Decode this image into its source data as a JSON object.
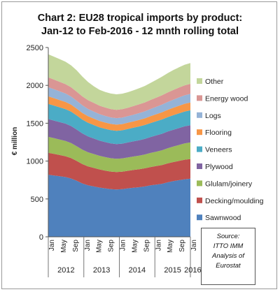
{
  "chart_data": {
    "type": "area",
    "stacked": true,
    "title": "Chart 2: EU28 tropical imports by product:",
    "subtitle": "Jan-12 to Feb-2016 - 12 mnth rolling total",
    "ylabel": "€ million",
    "ylim": [
      0,
      2500
    ],
    "yticks": [
      0,
      500,
      1000,
      1500,
      2000,
      2500
    ],
    "x_tick_labels": [
      "Jan",
      "May",
      "Sep",
      "Jan",
      "May",
      "Sep",
      "Jan",
      "May",
      "Sep",
      "Jan",
      "May",
      "Sep",
      "Jan"
    ],
    "year_labels": [
      "2012",
      "2013",
      "2014",
      "2015",
      "2016"
    ],
    "x": [
      "Jan-12",
      "Mar-12",
      "May-12",
      "Jul-12",
      "Sep-12",
      "Nov-12",
      "Jan-13",
      "Mar-13",
      "May-13",
      "Jul-13",
      "Sep-13",
      "Nov-13",
      "Jan-14",
      "Mar-14",
      "May-14",
      "Jul-14",
      "Sep-14",
      "Nov-14",
      "Jan-15",
      "Mar-15",
      "May-15",
      "Jul-15",
      "Sep-15",
      "Nov-15",
      "Jan-16",
      "Feb-16"
    ],
    "grid": false,
    "legend_position": "right",
    "series": [
      {
        "name": "Sawnwood",
        "color": "#4f81bd",
        "values": [
          820,
          810,
          800,
          790,
          770,
          740,
          705,
          680,
          665,
          650,
          640,
          630,
          625,
          630,
          640,
          648,
          655,
          665,
          680,
          690,
          700,
          720,
          735,
          748,
          760,
          768
        ]
      },
      {
        "name": "Decking/moulding",
        "color": "#c0504d",
        "values": [
          290,
          285,
          280,
          275,
          270,
          262,
          255,
          250,
          245,
          240,
          235,
          232,
          230,
          230,
          232,
          235,
          238,
          240,
          242,
          245,
          248,
          250,
          252,
          255,
          258,
          260
        ]
      },
      {
        "name": "Glulam/joinery",
        "color": "#9bbb59",
        "values": [
          210,
          208,
          205,
          202,
          198,
          194,
          190,
          186,
          183,
          180,
          178,
          176,
          175,
          175,
          176,
          178,
          180,
          183,
          186,
          190,
          195,
          200,
          205,
          210,
          215,
          218
        ]
      },
      {
        "name": "Plywood",
        "color": "#8064a2",
        "values": [
          235,
          232,
          230,
          228,
          225,
          220,
          215,
          210,
          205,
          200,
          198,
          196,
          195,
          196,
          198,
          200,
          203,
          206,
          210,
          215,
          218,
          220,
          222,
          224,
          226,
          228
        ]
      },
      {
        "name": "Veneers",
        "color": "#4bacc6",
        "values": [
          200,
          198,
          195,
          192,
          190,
          187,
          183,
          180,
          178,
          176,
          175,
          175,
          175,
          176,
          178,
          180,
          182,
          183,
          185,
          187,
          189,
          190,
          192,
          194,
          196,
          197
        ]
      },
      {
        "name": "Flooring",
        "color": "#f79646",
        "values": [
          100,
          98,
          96,
          94,
          92,
          90,
          88,
          86,
          85,
          84,
          83,
          82,
          82,
          82,
          83,
          84,
          86,
          88,
          90,
          92,
          94,
          96,
          98,
          100,
          102,
          103
        ]
      },
      {
        "name": "Logs",
        "color": "#95b3d7",
        "values": [
          120,
          118,
          115,
          112,
          108,
          104,
          100,
          96,
          93,
          90,
          88,
          86,
          85,
          85,
          86,
          88,
          90,
          92,
          95,
          98,
          101,
          104,
          107,
          110,
          112,
          113
        ]
      },
      {
        "name": "Energy wood",
        "color": "#da9694",
        "values": [
          130,
          128,
          126,
          124,
          122,
          120,
          118,
          116,
          114,
          112,
          111,
          110,
          110,
          111,
          112,
          114,
          116,
          118,
          120,
          122,
          124,
          126,
          128,
          130,
          132,
          133
        ]
      },
      {
        "name": "Other",
        "color": "#c3d69b",
        "values": [
          305,
          302,
          300,
          296,
          290,
          280,
          262,
          240,
          220,
          210,
          205,
          205,
          205,
          205,
          205,
          208,
          212,
          218,
          225,
          235,
          245,
          255,
          263,
          268,
          272,
          275
        ]
      }
    ]
  },
  "source": {
    "lines": [
      "Source:",
      "ITTO IMM",
      "Analysis of",
      "Eurostat"
    ]
  }
}
